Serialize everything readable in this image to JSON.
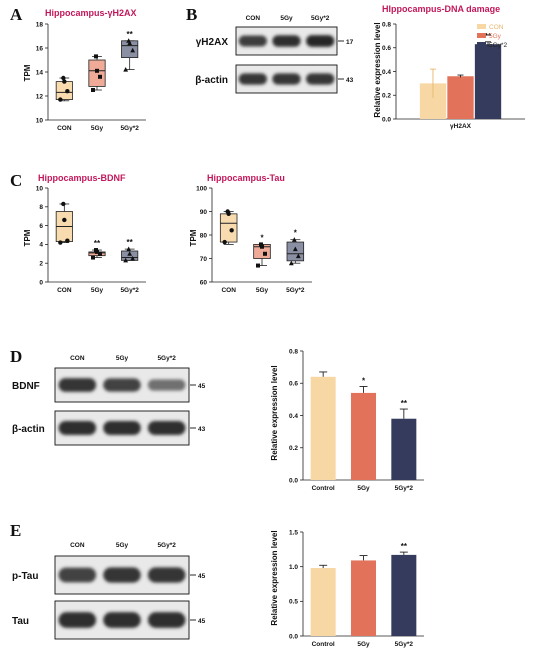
{
  "panel_letters": [
    "A",
    "B",
    "C",
    "D",
    "E"
  ],
  "colors": {
    "con": "#f7d7a3",
    "g5": "#e2735a",
    "g5x2": "#343b5c",
    "con_box": "#f8dcb0",
    "g5_box": "#efaa98",
    "g5x2_box": "#8a8fa3"
  },
  "chart_data": [
    {
      "id": "A",
      "type": "box",
      "title": "Hippocampus-γH2AX",
      "ylabel": "TPM",
      "xlabel": "",
      "categories": [
        "CON",
        "5Gy",
        "5Gy*2"
      ],
      "ylim": [
        10,
        18
      ],
      "yticks": [
        "10",
        "12",
        "14",
        "16",
        "18"
      ],
      "boxes": [
        {
          "min": 11.6,
          "q1": 11.7,
          "median": 12.3,
          "q3": 13.2,
          "max": 13.5
        },
        {
          "min": 12.5,
          "q1": 12.8,
          "median": 14.1,
          "q3": 15.0,
          "max": 15.3
        },
        {
          "min": 14.2,
          "q1": 15.2,
          "median": 16.2,
          "q3": 16.6,
          "max": 16.6
        }
      ],
      "points": [
        [
          11.7,
          12.4,
          13.2,
          13.5
        ],
        [
          12.5,
          13.6,
          14.1,
          15.3
        ],
        [
          14.2,
          15.8,
          16.4,
          16.6
        ]
      ],
      "significance": [
        "",
        "",
        "**"
      ]
    },
    {
      "id": "B",
      "type": "bar",
      "title": "HIppocampus-DNA damage",
      "ylabel": "Relative expression level",
      "xlabel": "",
      "categories": [
        "γH2AX"
      ],
      "series": [
        {
          "name": "CON",
          "values": [
            0.3
          ],
          "errors": [
            0.12
          ]
        },
        {
          "name": "5Gy",
          "values": [
            0.36
          ],
          "errors": [
            0.01
          ]
        },
        {
          "name": "5Gy*2",
          "values": [
            0.63
          ],
          "errors": [
            0.02
          ]
        }
      ],
      "ylim": [
        0,
        0.8
      ],
      "yticks": [
        "0.0",
        "0.2",
        "0.4",
        "0.6",
        "0.8"
      ],
      "significance": [
        "",
        "",
        "**"
      ],
      "legend": "top-right"
    },
    {
      "id": "C1",
      "type": "box",
      "title": "Hippocampus-BDNF",
      "ylabel": "TPM",
      "xlabel": "",
      "categories": [
        "CON",
        "5Gy",
        "5Gy*2"
      ],
      "ylim": [
        0,
        10
      ],
      "yticks": [
        "0",
        "2",
        "4",
        "6",
        "8",
        "10"
      ],
      "boxes": [
        {
          "min": 4.2,
          "q1": 4.3,
          "median": 5.9,
          "q3": 7.5,
          "max": 8.3
        },
        {
          "min": 2.6,
          "q1": 2.8,
          "median": 3.1,
          "q3": 3.2,
          "max": 3.4
        },
        {
          "min": 2.3,
          "q1": 2.3,
          "median": 2.6,
          "q3": 3.3,
          "max": 3.5
        }
      ],
      "points": [
        [
          4.2,
          4.4,
          6.6,
          8.3
        ],
        [
          2.6,
          3.0,
          3.2,
          3.4
        ],
        [
          2.3,
          2.5,
          3.0,
          3.5
        ]
      ],
      "significance": [
        "",
        "**",
        "**"
      ]
    },
    {
      "id": "C2",
      "type": "box",
      "title": "Hippocampus-Tau",
      "ylabel": "TPM",
      "xlabel": "",
      "categories": [
        "CON",
        "5Gy",
        "5Gy*2"
      ],
      "ylim": [
        60,
        100
      ],
      "yticks": [
        "60",
        "70",
        "80",
        "90",
        "100"
      ],
      "boxes": [
        {
          "min": 76,
          "q1": 77,
          "median": 85,
          "q3": 89,
          "max": 90
        },
        {
          "min": 67,
          "q1": 70,
          "median": 75,
          "q3": 76,
          "max": 76
        },
        {
          "min": 68,
          "q1": 69,
          "median": 72,
          "q3": 77,
          "max": 78
        }
      ],
      "points": [
        [
          77,
          82,
          89,
          90
        ],
        [
          67,
          72,
          75,
          76
        ],
        [
          68,
          71,
          74,
          78
        ]
      ],
      "significance": [
        "",
        "*",
        "*"
      ]
    },
    {
      "id": "D",
      "type": "bar",
      "title": "",
      "ylabel": "Relative expression level",
      "xlabel": "",
      "categories": [
        "Control",
        "5Gy",
        "5Gy*2"
      ],
      "values": [
        0.64,
        0.54,
        0.38
      ],
      "errors": [
        0.03,
        0.04,
        0.06
      ],
      "ylim": [
        0,
        0.8
      ],
      "yticks": [
        "0.0",
        "0.2",
        "0.4",
        "0.6",
        "0.8"
      ],
      "significance": [
        "",
        "*",
        "**"
      ]
    },
    {
      "id": "E",
      "type": "bar",
      "title": "",
      "ylabel": "Relative expression level",
      "xlabel": "",
      "categories": [
        "Control",
        "5Gy",
        "5Gy*2"
      ],
      "values": [
        0.98,
        1.09,
        1.17
      ],
      "errors": [
        0.04,
        0.07,
        0.04
      ],
      "ylim": [
        0,
        1.5
      ],
      "yticks": [
        "0.0",
        "0.5",
        "1.0",
        "1.5"
      ],
      "significance": [
        "",
        "",
        "**"
      ]
    }
  ],
  "blots": [
    {
      "id": "B",
      "lanes": [
        "CON",
        "5Gy",
        "5Gy*2"
      ],
      "rows": [
        {
          "label": "γH2AX",
          "marker": "17",
          "intensity": [
            0.85,
            0.95,
            1.0
          ]
        },
        {
          "label": "β-actin",
          "marker": "43",
          "intensity": [
            0.9,
            0.9,
            0.9
          ]
        }
      ]
    },
    {
      "id": "D",
      "lanes": [
        "CON",
        "5Gy",
        "5Gy*2"
      ],
      "rows": [
        {
          "label": "BDNF",
          "marker": "45",
          "intensity": [
            0.9,
            0.8,
            0.45
          ]
        },
        {
          "label": "β-actin",
          "marker": "43",
          "intensity": [
            0.95,
            0.95,
            0.95
          ]
        }
      ]
    },
    {
      "id": "E",
      "lanes": [
        "CON",
        "5Gy",
        "5Gy*2"
      ],
      "rows": [
        {
          "label": "p-Tau",
          "marker": "45",
          "intensity": [
            0.8,
            0.9,
            0.9
          ]
        },
        {
          "label": "Tau",
          "marker": "45",
          "intensity": [
            0.95,
            0.95,
            0.95
          ]
        }
      ]
    }
  ]
}
